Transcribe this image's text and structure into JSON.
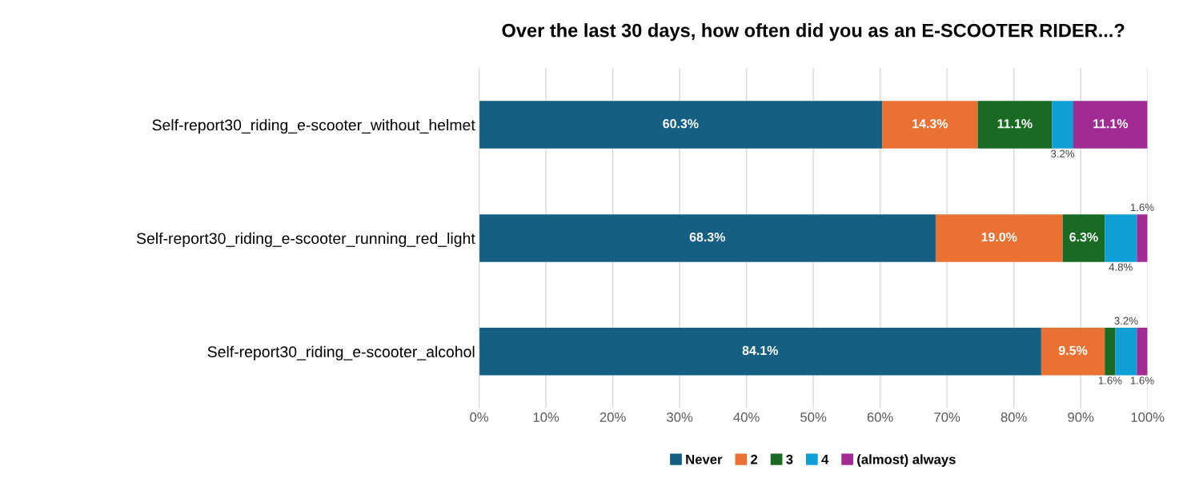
{
  "chart_data": {
    "type": "bar",
    "orientation": "horizontal",
    "stacked": true,
    "title": "Over the last 30 days, how often did you as an E-SCOOTER RIDER...?",
    "categories": [
      "Self-report30_riding_e-scooter_without_helmet",
      "Self-report30_riding_e-scooter_running_red_light",
      "Self-report30_riding_e-scooter_alcohol"
    ],
    "series": [
      {
        "name": "Never",
        "color": "#156082",
        "values": [
          60.3,
          68.3,
          84.1
        ],
        "value_labels": [
          "60.3%",
          "68.3%",
          "84.1%"
        ]
      },
      {
        "name": "2",
        "color": "#e97132",
        "values": [
          14.3,
          19.0,
          9.5
        ],
        "value_labels": [
          "14.3%",
          "19.0%",
          "9.5%"
        ]
      },
      {
        "name": "3",
        "color": "#196b24",
        "values": [
          11.1,
          6.3,
          1.6
        ],
        "value_labels": [
          "11.1%",
          "6.3%",
          "1.6%"
        ]
      },
      {
        "name": "4",
        "color": "#0f9ed5",
        "values": [
          3.2,
          4.8,
          3.2
        ],
        "value_labels": [
          "3.2%",
          "4.8%",
          "3.2%"
        ]
      },
      {
        "name": "(almost) always",
        "color": "#a02b93",
        "values": [
          11.1,
          1.6,
          1.6
        ],
        "value_labels": [
          "11.1%",
          "1.6%",
          "1.6%"
        ]
      }
    ],
    "xlim": [
      0,
      100
    ],
    "xticks": [
      {
        "value": 0,
        "label": "0%"
      },
      {
        "value": 10,
        "label": "10%"
      },
      {
        "value": 20,
        "label": "20%"
      },
      {
        "value": 30,
        "label": "30%"
      },
      {
        "value": 40,
        "label": "40%"
      },
      {
        "value": 50,
        "label": "50%"
      },
      {
        "value": 60,
        "label": "60%"
      },
      {
        "value": 70,
        "label": "70%"
      },
      {
        "value": 80,
        "label": "80%"
      },
      {
        "value": 90,
        "label": "90%"
      },
      {
        "value": 100,
        "label": "100%"
      }
    ],
    "grid": "x",
    "legend": "bottom"
  }
}
